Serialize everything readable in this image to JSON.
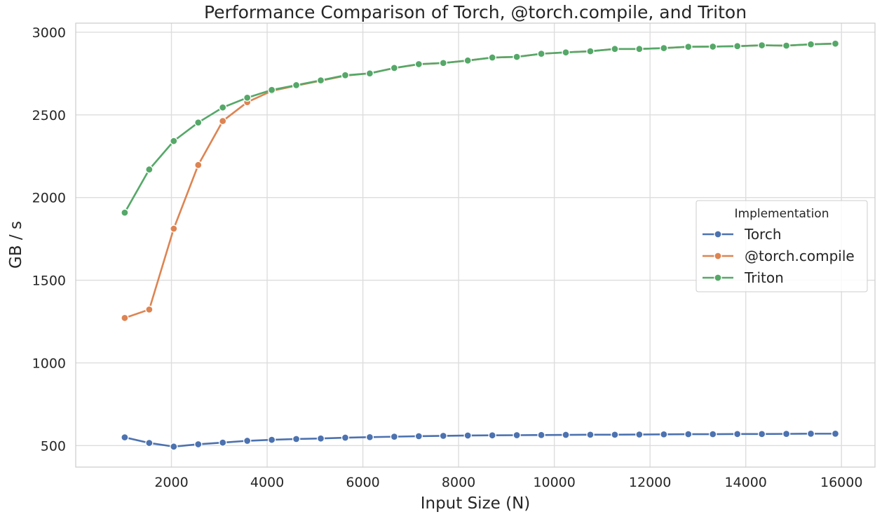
{
  "chart_data": {
    "type": "line",
    "title": "Performance Comparison of Torch, @torch.compile, and Triton",
    "xlabel": "Input Size (N)",
    "ylabel": "GB / s",
    "xlim": [
      0,
      16700
    ],
    "ylim": [
      370,
      3055
    ],
    "xticks": [
      2000,
      4000,
      6000,
      8000,
      10000,
      12000,
      14000,
      16000
    ],
    "yticks": [
      500,
      1000,
      1500,
      2000,
      2500,
      3000
    ],
    "grid": true,
    "legend": {
      "title": "Implementation",
      "position": "center-right"
    },
    "x": [
      1024,
      1536,
      2048,
      2560,
      3072,
      3584,
      4096,
      4608,
      5120,
      5632,
      6144,
      6656,
      7168,
      7680,
      8192,
      8704,
      9216,
      9728,
      10240,
      10752,
      11264,
      11776,
      12288,
      12800,
      13312,
      13824,
      14336,
      14848,
      15360,
      15872
    ],
    "series": [
      {
        "name": "Torch",
        "color": "#4c72b0",
        "values": [
          550,
          516,
          494,
          508,
          518,
          529,
          535,
          540,
          543,
          548,
          551,
          554,
          557,
          559,
          561,
          562,
          563,
          564,
          565,
          566,
          566,
          567,
          568,
          569,
          569,
          570,
          570,
          571,
          572,
          572
        ]
      },
      {
        "name": "@torch.compile",
        "color": "#dd8452",
        "values": [
          1272,
          1323,
          1812,
          2197,
          2463,
          2577,
          2645,
          2677,
          2707,
          2737,
          2752,
          2783,
          2806,
          2814,
          2829,
          2847,
          2851,
          2870,
          2878,
          2885,
          2899,
          2899,
          2904,
          2912,
          2913,
          2916,
          2921,
          2919,
          2927,
          2931
        ]
      },
      {
        "name": "Triton",
        "color": "#55a868",
        "values": [
          1909,
          2170,
          2342,
          2454,
          2545,
          2604,
          2651,
          2680,
          2709,
          2740,
          2751,
          2784,
          2807,
          2814,
          2829,
          2847,
          2851,
          2870,
          2878,
          2885,
          2899,
          2899,
          2904,
          2912,
          2913,
          2916,
          2921,
          2919,
          2927,
          2931
        ]
      }
    ]
  }
}
